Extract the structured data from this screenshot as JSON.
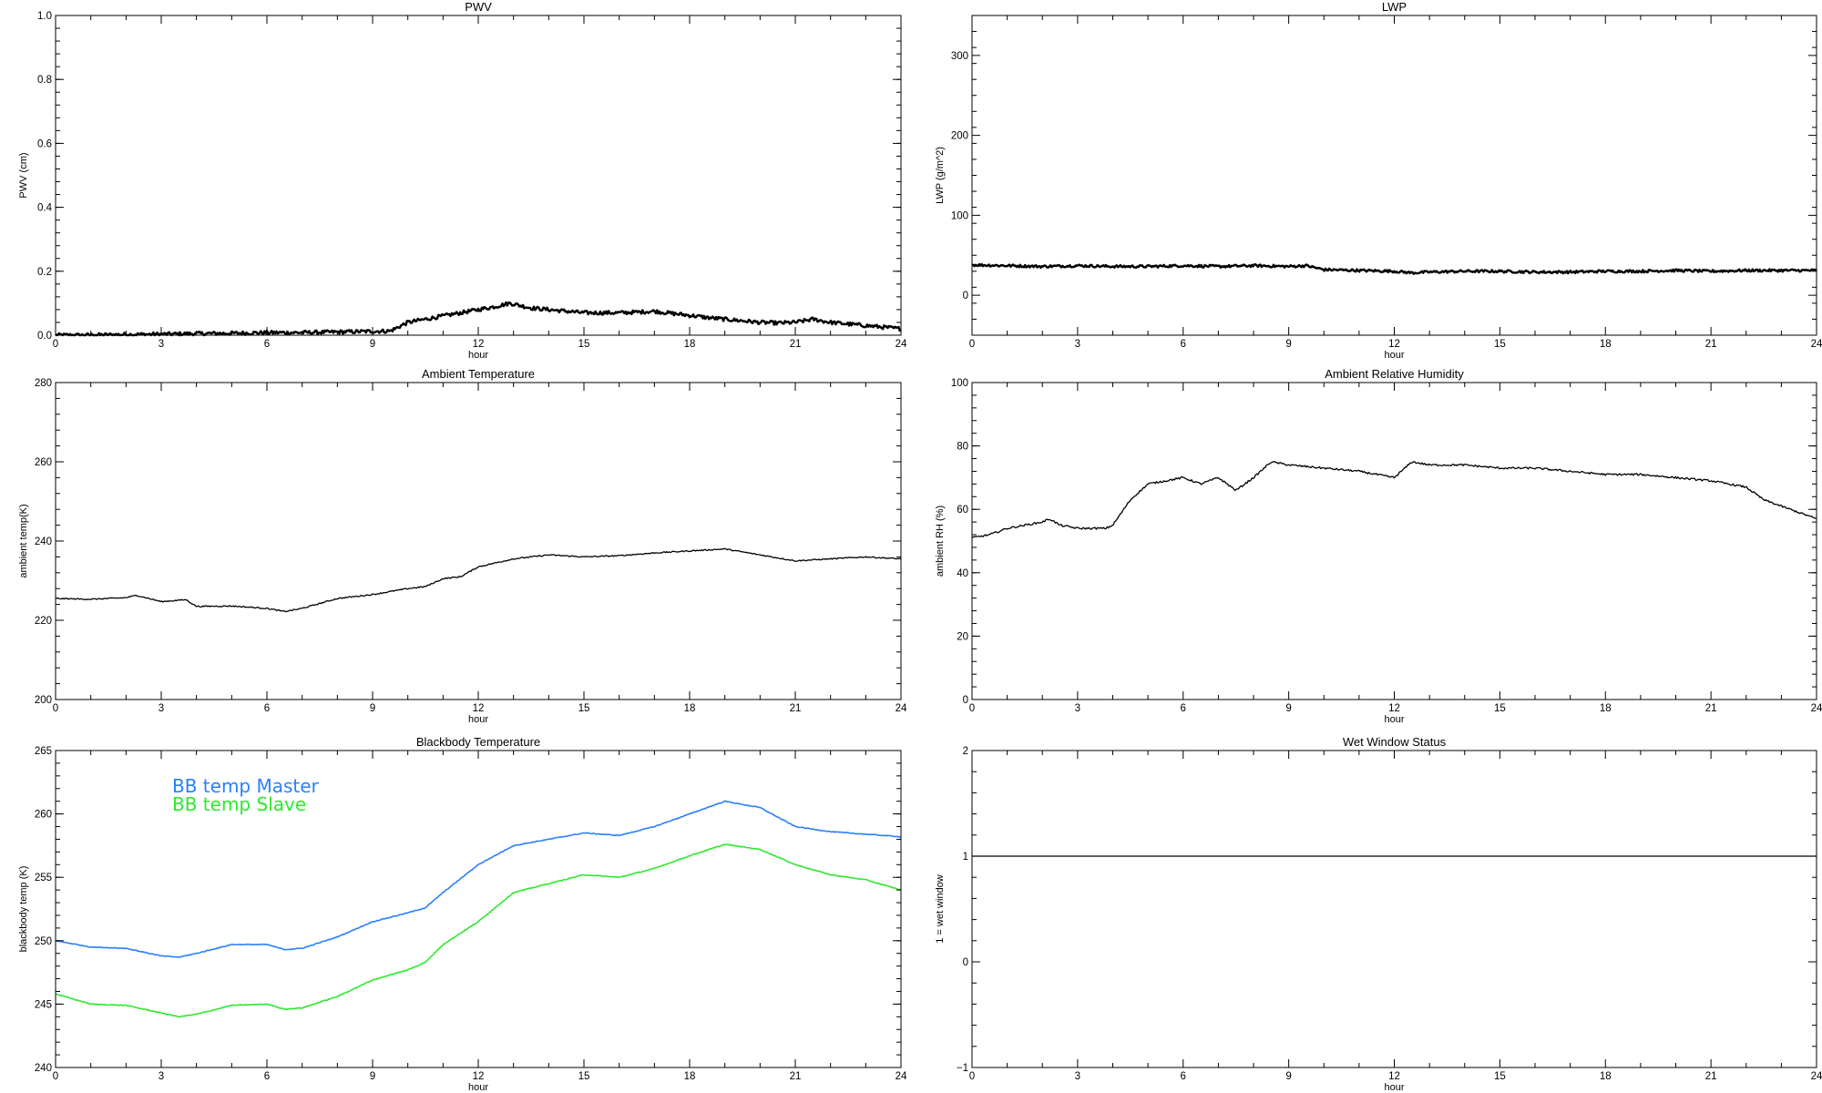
{
  "chart_data": [
    {
      "id": "pwv",
      "type": "line",
      "title": "PWV",
      "xlabel": "hour",
      "ylabel": "PWV (cm)",
      "xlim": [
        0,
        24
      ],
      "ylim": [
        0,
        1.0
      ],
      "xticks": [
        0,
        3,
        6,
        9,
        12,
        15,
        18,
        21,
        24
      ],
      "yticks": [
        0.0,
        0.2,
        0.4,
        0.6,
        0.8,
        1.0
      ],
      "ytick_labels": [
        "0.0",
        "0.2",
        "0.4",
        "0.6",
        "0.8",
        "1.0"
      ],
      "noise": 0.006,
      "series": [
        {
          "color": "#000000",
          "width": 2.5,
          "x": [
            0,
            1,
            2,
            3,
            4,
            5,
            6,
            7,
            8,
            9,
            9.5,
            10,
            10.5,
            11,
            11.5,
            12,
            12.5,
            12.9,
            13.5,
            14,
            14.5,
            15,
            15.5,
            16,
            16.5,
            17,
            17.5,
            18,
            18.5,
            19,
            19.5,
            20,
            20.5,
            21,
            21.5,
            22,
            22.5,
            23,
            23.5,
            24
          ],
          "y": [
            0.0,
            0.0,
            0.002,
            0.003,
            0.005,
            0.006,
            0.008,
            0.008,
            0.01,
            0.012,
            0.013,
            0.04,
            0.05,
            0.06,
            0.07,
            0.08,
            0.09,
            0.1,
            0.085,
            0.08,
            0.075,
            0.07,
            0.07,
            0.07,
            0.072,
            0.075,
            0.068,
            0.062,
            0.055,
            0.05,
            0.045,
            0.04,
            0.038,
            0.04,
            0.05,
            0.04,
            0.035,
            0.03,
            0.025,
            0.02
          ]
        }
      ]
    },
    {
      "id": "lwp",
      "type": "line",
      "title": "LWP",
      "xlabel": "hour",
      "ylabel": "LWP (g/m^2)",
      "xlim": [
        0,
        24
      ],
      "ylim": [
        -50,
        350
      ],
      "xticks": [
        0,
        3,
        6,
        9,
        12,
        15,
        18,
        21,
        24
      ],
      "yticks": [
        0,
        100,
        200,
        300
      ],
      "ytick_labels": [
        "0",
        "100",
        "200",
        "300"
      ],
      "noise": 1.6,
      "series": [
        {
          "color": "#000000",
          "width": 2.5,
          "x": [
            0,
            1,
            2,
            3,
            4,
            5,
            6,
            7,
            8,
            9,
            9.5,
            10,
            11,
            12,
            12.5,
            13,
            14,
            15,
            16,
            17,
            18,
            19,
            20,
            21,
            22,
            23,
            24
          ],
          "y": [
            38,
            37,
            36,
            37,
            36,
            36,
            37,
            36,
            37,
            36,
            37,
            32,
            31,
            30,
            28,
            29,
            30,
            30,
            29,
            29,
            30,
            30,
            31,
            30,
            31,
            31,
            31
          ]
        }
      ]
    },
    {
      "id": "ambient-temp",
      "type": "line",
      "title": "Ambient Temperature",
      "xlabel": "hour",
      "ylabel": "ambient temp(K)",
      "xlim": [
        0,
        24
      ],
      "ylim": [
        200,
        280
      ],
      "xticks": [
        0,
        3,
        6,
        9,
        12,
        15,
        18,
        21,
        24
      ],
      "yticks": [
        200,
        220,
        240,
        260,
        280
      ],
      "ytick_labels": [
        "200",
        "220",
        "240",
        "260",
        "280"
      ],
      "noise": 0.15,
      "series": [
        {
          "color": "#000000",
          "width": 1.3,
          "x": [
            0,
            1,
            2,
            2.3,
            3,
            3.7,
            4,
            5,
            6,
            6.5,
            7,
            8,
            9,
            10,
            10.5,
            11,
            11.5,
            12,
            13,
            14,
            15,
            16,
            17,
            18,
            19,
            20,
            21,
            22,
            23,
            24
          ],
          "y": [
            225.5,
            225.3,
            225.7,
            226.3,
            224.7,
            225.2,
            223.5,
            223.6,
            223,
            222.2,
            223,
            225.5,
            226.5,
            228,
            228.5,
            230.5,
            231,
            233.5,
            235.5,
            236.5,
            236,
            236.3,
            237,
            237.5,
            238,
            236.5,
            235,
            235.5,
            236,
            235.5
          ]
        }
      ]
    },
    {
      "id": "ambient-rh",
      "type": "line",
      "title": "Ambient Relative Humidity",
      "xlabel": "hour",
      "ylabel": "ambient RH (%)",
      "xlim": [
        0,
        24
      ],
      "ylim": [
        0,
        100
      ],
      "xticks": [
        0,
        3,
        6,
        9,
        12,
        15,
        18,
        21,
        24
      ],
      "yticks": [
        0,
        20,
        40,
        60,
        80,
        100
      ],
      "ytick_labels": [
        "0",
        "20",
        "40",
        "60",
        "80",
        "100"
      ],
      "noise": 0.3,
      "series": [
        {
          "color": "#000000",
          "width": 1.3,
          "x": [
            0,
            0.5,
            1,
            1.5,
            2,
            2.2,
            2.5,
            3,
            3.5,
            3.8,
            4,
            4.5,
            5,
            5.5,
            6,
            6.5,
            7,
            7.5,
            8,
            8.5,
            9,
            10,
            11,
            12,
            12.5,
            13,
            14,
            15,
            16,
            17,
            18,
            19,
            20,
            21,
            22,
            22.5,
            23,
            24
          ],
          "y": [
            51,
            52,
            54,
            55,
            56,
            57,
            55,
            54,
            54,
            54,
            55,
            63,
            68,
            69,
            70,
            68,
            70,
            66,
            70,
            75,
            74,
            73,
            72,
            70,
            75,
            74,
            74,
            73,
            73,
            72,
            71,
            71,
            70,
            69,
            67,
            63,
            61,
            57
          ]
        }
      ]
    },
    {
      "id": "blackbody-temp",
      "type": "line",
      "title": "Blackbody Temperature",
      "xlabel": "hour",
      "ylabel": "blackbody temp (K)",
      "xlim": [
        0,
        24
      ],
      "ylim": [
        240,
        265
      ],
      "xticks": [
        0,
        3,
        6,
        9,
        12,
        15,
        18,
        21,
        24
      ],
      "yticks": [
        240,
        245,
        250,
        255,
        260,
        265
      ],
      "ytick_labels": [
        "240",
        "245",
        "250",
        "255",
        "260",
        "265"
      ],
      "noise": 0.03,
      "legend": [
        {
          "label": "BB temp Master",
          "color": "#2a7fff"
        },
        {
          "label": "BB temp Slave",
          "color": "#2ee82e"
        }
      ],
      "series": [
        {
          "name": "BB temp Master",
          "color": "#2a7fff",
          "width": 1.6,
          "x": [
            0,
            1,
            2,
            3,
            3.5,
            4,
            5,
            6,
            6.5,
            7,
            8,
            9,
            10,
            10.5,
            11,
            12,
            13,
            14,
            15,
            16,
            17,
            18,
            19,
            20,
            21,
            22,
            23,
            24
          ],
          "y": [
            250,
            249.5,
            249.4,
            248.8,
            248.7,
            249,
            249.7,
            249.7,
            249.3,
            249.4,
            250.3,
            251.5,
            252.2,
            252.6,
            253.8,
            256,
            257.5,
            258,
            258.5,
            258.3,
            259,
            260,
            261,
            260.5,
            259,
            258.6,
            258.4,
            258.2
          ]
        },
        {
          "name": "BB temp Slave",
          "color": "#2ee82e",
          "width": 1.6,
          "x": [
            0,
            1,
            2,
            3,
            3.5,
            4,
            5,
            6,
            6.5,
            7,
            8,
            9,
            10,
            10.5,
            11,
            12,
            13,
            14,
            15,
            16,
            17,
            18,
            19,
            20,
            21,
            22,
            23,
            24
          ],
          "y": [
            245.8,
            245,
            244.9,
            244.3,
            244,
            244.2,
            244.9,
            245,
            244.6,
            244.7,
            245.6,
            246.9,
            247.7,
            248.3,
            249.7,
            251.5,
            253.8,
            254.5,
            255.2,
            255,
            255.7,
            256.7,
            257.6,
            257.2,
            256,
            255.2,
            254.8,
            254
          ]
        }
      ]
    },
    {
      "id": "wet-window",
      "type": "line",
      "title": "Wet Window Status",
      "xlabel": "hour",
      "ylabel": "1 = wet window",
      "xlim": [
        0,
        24
      ],
      "ylim": [
        -1,
        2
      ],
      "xticks": [
        0,
        3,
        6,
        9,
        12,
        15,
        18,
        21,
        24
      ],
      "yticks": [
        -1,
        0,
        1,
        2
      ],
      "ytick_labels": [
        "−1",
        "0",
        "1",
        "2"
      ],
      "noise": 0,
      "series": [
        {
          "color": "#000000",
          "width": 1.3,
          "x": [
            0,
            24
          ],
          "y": [
            1,
            1
          ]
        }
      ]
    }
  ]
}
